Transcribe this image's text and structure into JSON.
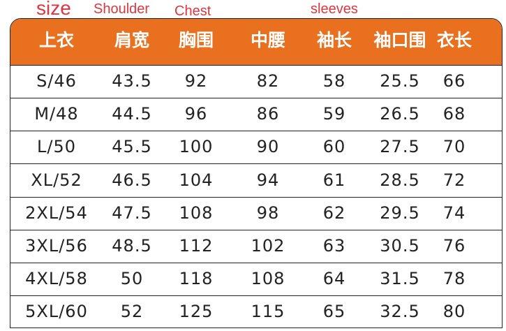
{
  "labels": {
    "size": "size",
    "shoulder": "Shoulder",
    "chest": "Chest",
    "sleeves": "sleeves"
  },
  "colors": {
    "header": "#e8701e",
    "label": "#e0363f"
  },
  "headers": [
    "上衣",
    "肩宽",
    "胸围",
    "中腰",
    "袖长",
    "袖口围",
    "衣长"
  ],
  "rows": [
    [
      "S/46",
      "43.5",
      "92",
      "82",
      "58",
      "25.5",
      "66"
    ],
    [
      "M/48",
      "44.5",
      "96",
      "86",
      "59",
      "26.5",
      "68"
    ],
    [
      "L/50",
      "45.5",
      "100",
      "90",
      "60",
      "27.5",
      "70"
    ],
    [
      "XL/52",
      "46.5",
      "104",
      "94",
      "61",
      "28.5",
      "72"
    ],
    [
      "2XL/54",
      "47.5",
      "108",
      "98",
      "62",
      "29.5",
      "74"
    ],
    [
      "3XL/56",
      "48.5",
      "112",
      "102",
      "63",
      "30.5",
      "76"
    ],
    [
      "4XL/58",
      "50",
      "118",
      "108",
      "64",
      "31.5",
      "78"
    ],
    [
      "5XL/60",
      "52",
      "125",
      "115",
      "65",
      "32.5",
      "80"
    ]
  ]
}
